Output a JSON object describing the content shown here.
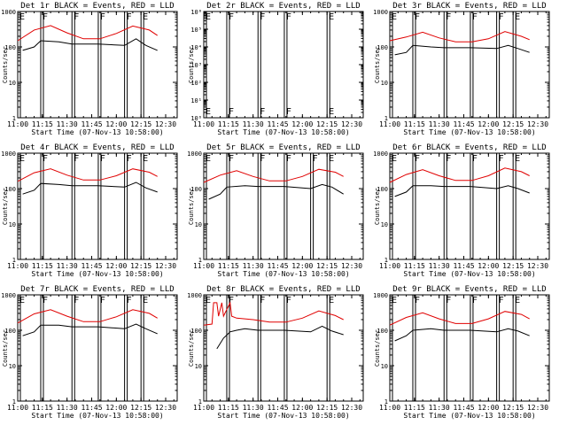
{
  "chart_data": [
    {
      "type": "line",
      "title": "Det 1r BLACK = Events, RED = LLD",
      "xlabel": "Start Time (07-Nov-13 10:58:00)",
      "ylabel": "Counts/sec",
      "yscale": "log",
      "ylim": [
        1,
        1000
      ],
      "xlim": [
        "11:00",
        "12:37"
      ],
      "xticks": [
        "11:00",
        "11:15",
        "11:30",
        "11:45",
        "12:00",
        "12:15",
        "12:30"
      ],
      "yticks": [
        "1",
        "10",
        "100",
        "1000"
      ],
      "markers": [
        {
          "label": "E",
          "time": "11:00"
        },
        {
          "label": "F",
          "time": "11:14"
        },
        {
          "label": "F",
          "time": "11:33"
        },
        {
          "label": "F",
          "time": "11:49"
        },
        {
          "label": "F",
          "time": "12:05"
        },
        {
          "label": "E",
          "time": "12:15"
        }
      ],
      "series": [
        {
          "color": "#e00000",
          "x": [
            "11:00",
            "11:10",
            "11:20",
            "11:30",
            "11:40",
            "11:50",
            "12:00",
            "12:10",
            "12:20",
            "12:25"
          ],
          "values": [
            150,
            300,
            400,
            250,
            170,
            170,
            240,
            390,
            300,
            210
          ]
        },
        {
          "color": "#000000",
          "x": [
            "11:03",
            "11:10",
            "11:14",
            "11:25",
            "11:33",
            "11:49",
            "12:05",
            "12:12",
            "12:18",
            "12:25"
          ],
          "values": [
            80,
            100,
            150,
            140,
            120,
            120,
            110,
            170,
            110,
            80
          ]
        }
      ]
    },
    {
      "type": "line",
      "title": "Det 2r BLACK = Events, RED = LLD",
      "xlabel": "Start Time (07-Nov-13 10:58:00)",
      "ylabel": "Counts/sec",
      "yscale": "log",
      "ylim": [
        1,
        1000000
      ],
      "xlim": [
        "11:00",
        "12:37"
      ],
      "xticks": [
        "11:00",
        "11:15",
        "11:30",
        "11:45",
        "12:00",
        "12:15",
        "12:30"
      ],
      "yticks": [
        "10⁰",
        "10¹",
        "10²",
        "10³",
        "10⁴",
        "10⁵",
        "10⁶"
      ],
      "markers": [
        {
          "label": "E",
          "time": "11:00"
        },
        {
          "label": "F",
          "time": "11:14"
        },
        {
          "label": "F",
          "time": "11:33"
        },
        {
          "label": "F",
          "time": "11:49"
        },
        {
          "label": "E",
          "time": "12:15"
        }
      ],
      "series": []
    },
    {
      "type": "line",
      "title": "Det 3r BLACK = Events, RED = LLD",
      "xlabel": "Start Time (07-Nov-13 10:58:00)",
      "ylabel": "Counts/sec",
      "yscale": "log",
      "ylim": [
        1,
        1000
      ],
      "xlim": [
        "11:00",
        "12:37"
      ],
      "xticks": [
        "11:00",
        "11:15",
        "11:30",
        "11:45",
        "12:00",
        "12:15",
        "12:30"
      ],
      "yticks": [
        "1",
        "10",
        "100",
        "1000"
      ],
      "markers": [
        {
          "label": "E",
          "time": "11:00"
        },
        {
          "label": "F",
          "time": "11:14"
        },
        {
          "label": "F",
          "time": "11:33"
        },
        {
          "label": "F",
          "time": "11:49"
        },
        {
          "label": "F",
          "time": "12:05"
        },
        {
          "label": "E",
          "time": "12:15"
        }
      ],
      "series": [
        {
          "color": "#e00000",
          "x": [
            "11:00",
            "11:10",
            "11:20",
            "11:30",
            "11:40",
            "11:50",
            "12:00",
            "12:10",
            "12:20",
            "12:25"
          ],
          "values": [
            150,
            190,
            260,
            180,
            140,
            140,
            170,
            270,
            200,
            160
          ]
        },
        {
          "color": "#000000",
          "x": [
            "11:03",
            "11:10",
            "11:14",
            "11:25",
            "11:33",
            "11:49",
            "12:05",
            "12:12",
            "12:18",
            "12:25"
          ],
          "values": [
            60,
            70,
            110,
            100,
            95,
            95,
            90,
            110,
            90,
            70
          ]
        }
      ]
    },
    {
      "type": "line",
      "title": "Det 4r BLACK = Events, RED = LLD",
      "xlabel": "Start Time (07-Nov-13 10:58:00)",
      "ylabel": "Counts/sec",
      "yscale": "log",
      "ylim": [
        1,
        1000
      ],
      "xlim": [
        "11:00",
        "12:37"
      ],
      "xticks": [
        "11:00",
        "11:15",
        "11:30",
        "11:45",
        "12:00",
        "12:15",
        "12:30"
      ],
      "yticks": [
        "1",
        "10",
        "100",
        "1000"
      ],
      "markers": [
        {
          "label": "E",
          "time": "11:00"
        },
        {
          "label": "F",
          "time": "11:14"
        },
        {
          "label": "F",
          "time": "11:33"
        },
        {
          "label": "F",
          "time": "11:49"
        },
        {
          "label": "F",
          "time": "12:05"
        },
        {
          "label": "E",
          "time": "12:15"
        }
      ],
      "series": [
        {
          "color": "#e00000",
          "x": [
            "11:00",
            "11:10",
            "11:20",
            "11:30",
            "11:40",
            "11:50",
            "12:00",
            "12:10",
            "12:20",
            "12:25"
          ],
          "values": [
            160,
            280,
            360,
            240,
            175,
            175,
            230,
            360,
            290,
            220
          ]
        },
        {
          "color": "#000000",
          "x": [
            "11:03",
            "11:10",
            "11:14",
            "11:25",
            "11:33",
            "11:49",
            "12:05",
            "12:12",
            "12:18",
            "12:25"
          ],
          "values": [
            70,
            90,
            140,
            130,
            120,
            120,
            110,
            150,
            105,
            80
          ]
        }
      ]
    },
    {
      "type": "line",
      "title": "Det 5r BLACK = Events, RED = LLD",
      "xlabel": "Start Time (07-Nov-13 10:58:00)",
      "ylabel": "Counts/sec",
      "yscale": "log",
      "ylim": [
        1,
        1000
      ],
      "xlim": [
        "11:00",
        "12:37"
      ],
      "xticks": [
        "11:00",
        "11:15",
        "11:30",
        "11:45",
        "12:00",
        "12:15",
        "12:30"
      ],
      "yticks": [
        "1",
        "10",
        "100",
        "1000"
      ],
      "markers": [
        {
          "label": "E",
          "time": "11:00"
        },
        {
          "label": "F",
          "time": "11:14"
        },
        {
          "label": "F",
          "time": "11:33"
        },
        {
          "label": "F",
          "time": "11:49"
        },
        {
          "label": "F",
          "time": "12:05"
        },
        {
          "label": "E",
          "time": "12:15"
        }
      ],
      "series": [
        {
          "color": "#e00000",
          "x": [
            "11:00",
            "11:10",
            "11:20",
            "11:30",
            "11:40",
            "11:50",
            "12:00",
            "12:10",
            "12:20",
            "12:25"
          ],
          "values": [
            150,
            240,
            320,
            220,
            165,
            165,
            220,
            350,
            290,
            220
          ]
        },
        {
          "color": "#000000",
          "x": [
            "11:03",
            "11:10",
            "11:14",
            "11:25",
            "11:33",
            "11:49",
            "12:05",
            "12:12",
            "12:18",
            "12:25"
          ],
          "values": [
            50,
            70,
            110,
            120,
            115,
            115,
            100,
            130,
            110,
            70
          ]
        }
      ]
    },
    {
      "type": "line",
      "title": "Det 6r BLACK = Events, RED = LLD",
      "xlabel": "Start Time (07-Nov-13 10:58:00)",
      "ylabel": "Counts/sec",
      "yscale": "log",
      "ylim": [
        1,
        1000
      ],
      "xlim": [
        "11:00",
        "12:37"
      ],
      "xticks": [
        "11:00",
        "11:15",
        "11:30",
        "11:45",
        "12:00",
        "12:15",
        "12:30"
      ],
      "yticks": [
        "1",
        "10",
        "100",
        "1000"
      ],
      "markers": [
        {
          "label": "E",
          "time": "11:00"
        },
        {
          "label": "F",
          "time": "11:14"
        },
        {
          "label": "F",
          "time": "11:33"
        },
        {
          "label": "F",
          "time": "11:49"
        },
        {
          "label": "F",
          "time": "12:05"
        },
        {
          "label": "E",
          "time": "12:15"
        }
      ],
      "series": [
        {
          "color": "#e00000",
          "x": [
            "11:00",
            "11:10",
            "11:20",
            "11:30",
            "11:40",
            "11:50",
            "12:00",
            "12:10",
            "12:20",
            "12:25"
          ],
          "values": [
            150,
            250,
            340,
            230,
            170,
            170,
            230,
            380,
            300,
            230
          ]
        },
        {
          "color": "#000000",
          "x": [
            "11:03",
            "11:10",
            "11:14",
            "11:25",
            "11:33",
            "11:49",
            "12:05",
            "12:12",
            "12:18",
            "12:25"
          ],
          "values": [
            60,
            80,
            120,
            120,
            115,
            115,
            100,
            120,
            100,
            75
          ]
        }
      ]
    },
    {
      "type": "line",
      "title": "Det 7r BLACK = Events, RED = LLD",
      "xlabel": "Start Time (07-Nov-13 10:58:00)",
      "ylabel": "Counts/sec",
      "yscale": "log",
      "ylim": [
        1,
        1000
      ],
      "xlim": [
        "11:00",
        "12:37"
      ],
      "xticks": [
        "11:00",
        "11:15",
        "11:30",
        "11:45",
        "12:00",
        "12:15",
        "12:30"
      ],
      "yticks": [
        "1",
        "10",
        "100",
        "1000"
      ],
      "markers": [
        {
          "label": "E",
          "time": "11:00"
        },
        {
          "label": "F",
          "time": "11:14"
        },
        {
          "label": "F",
          "time": "11:33"
        },
        {
          "label": "F",
          "time": "11:49"
        },
        {
          "label": "F",
          "time": "12:05"
        },
        {
          "label": "E",
          "time": "12:15"
        }
      ],
      "series": [
        {
          "color": "#e00000",
          "x": [
            "11:00",
            "11:10",
            "11:20",
            "11:30",
            "11:40",
            "11:50",
            "12:00",
            "12:10",
            "12:20",
            "12:25"
          ],
          "values": [
            160,
            290,
            380,
            250,
            175,
            175,
            240,
            380,
            300,
            220
          ]
        },
        {
          "color": "#000000",
          "x": [
            "11:03",
            "11:10",
            "11:14",
            "11:25",
            "11:33",
            "11:49",
            "12:05",
            "12:12",
            "12:18",
            "12:25"
          ],
          "values": [
            70,
            90,
            140,
            140,
            125,
            125,
            110,
            150,
            110,
            80
          ]
        }
      ]
    },
    {
      "type": "line",
      "title": "Det 8r BLACK = Events, RED = LLD",
      "xlabel": "Start Time (07-Nov-13 10:58:00)",
      "ylabel": "Counts/sec",
      "yscale": "log",
      "ylim": [
        1,
        1000
      ],
      "xlim": [
        "11:00",
        "12:37"
      ],
      "xticks": [
        "11:00",
        "11:15",
        "11:30",
        "11:45",
        "12:00",
        "12:15",
        "12:30"
      ],
      "yticks": [
        "1",
        "10",
        "100",
        "1000"
      ],
      "markers": [
        {
          "label": "E",
          "time": "11:00"
        },
        {
          "label": "F",
          "time": "11:14"
        },
        {
          "label": "F",
          "time": "11:33"
        },
        {
          "label": "F",
          "time": "11:49"
        },
        {
          "label": "E",
          "time": "12:15"
        }
      ],
      "series": [
        {
          "color": "#e00000",
          "x": [
            "11:00",
            "11:05",
            "11:06",
            "11:08",
            "11:09",
            "11:11",
            "11:12",
            "11:16",
            "11:17",
            "11:20",
            "11:30",
            "11:40",
            "11:50",
            "12:00",
            "12:10",
            "12:20",
            "12:25"
          ],
          "values": [
            140,
            150,
            600,
            600,
            250,
            600,
            250,
            600,
            250,
            220,
            200,
            170,
            170,
            220,
            350,
            260,
            200
          ]
        },
        {
          "color": "#000000",
          "x": [
            "11:08",
            "11:12",
            "11:16",
            "11:20",
            "11:25",
            "11:33",
            "11:49",
            "12:05",
            "12:12",
            "12:18",
            "12:25"
          ],
          "values": [
            30,
            60,
            90,
            100,
            110,
            100,
            100,
            90,
            130,
            95,
            75
          ]
        }
      ]
    },
    {
      "type": "line",
      "title": "Det 9r BLACK = Events, RED = LLD",
      "xlabel": "Start Time (07-Nov-13 10:58:00)",
      "ylabel": "Counts/sec",
      "yscale": "log",
      "ylim": [
        1,
        1000
      ],
      "xlim": [
        "11:00",
        "12:37"
      ],
      "xticks": [
        "11:00",
        "11:15",
        "11:30",
        "11:45",
        "12:00",
        "12:15",
        "12:30"
      ],
      "yticks": [
        "1",
        "10",
        "100",
        "1000"
      ],
      "markers": [
        {
          "label": "E",
          "time": "11:00"
        },
        {
          "label": "F",
          "time": "11:14"
        },
        {
          "label": "F",
          "time": "11:33"
        },
        {
          "label": "F",
          "time": "11:49"
        },
        {
          "label": "F",
          "time": "12:05"
        },
        {
          "label": "E",
          "time": "12:15"
        }
      ],
      "series": [
        {
          "color": "#e00000",
          "x": [
            "11:00",
            "11:10",
            "11:20",
            "11:30",
            "11:40",
            "11:50",
            "12:00",
            "12:10",
            "12:20",
            "12:25"
          ],
          "values": [
            140,
            230,
            310,
            210,
            155,
            155,
            210,
            340,
            280,
            210
          ]
        },
        {
          "color": "#000000",
          "x": [
            "11:03",
            "11:10",
            "11:14",
            "11:25",
            "11:33",
            "11:49",
            "12:05",
            "12:12",
            "12:18",
            "12:25"
          ],
          "values": [
            50,
            70,
            100,
            110,
            100,
            100,
            90,
            110,
            95,
            70
          ]
        }
      ]
    }
  ]
}
